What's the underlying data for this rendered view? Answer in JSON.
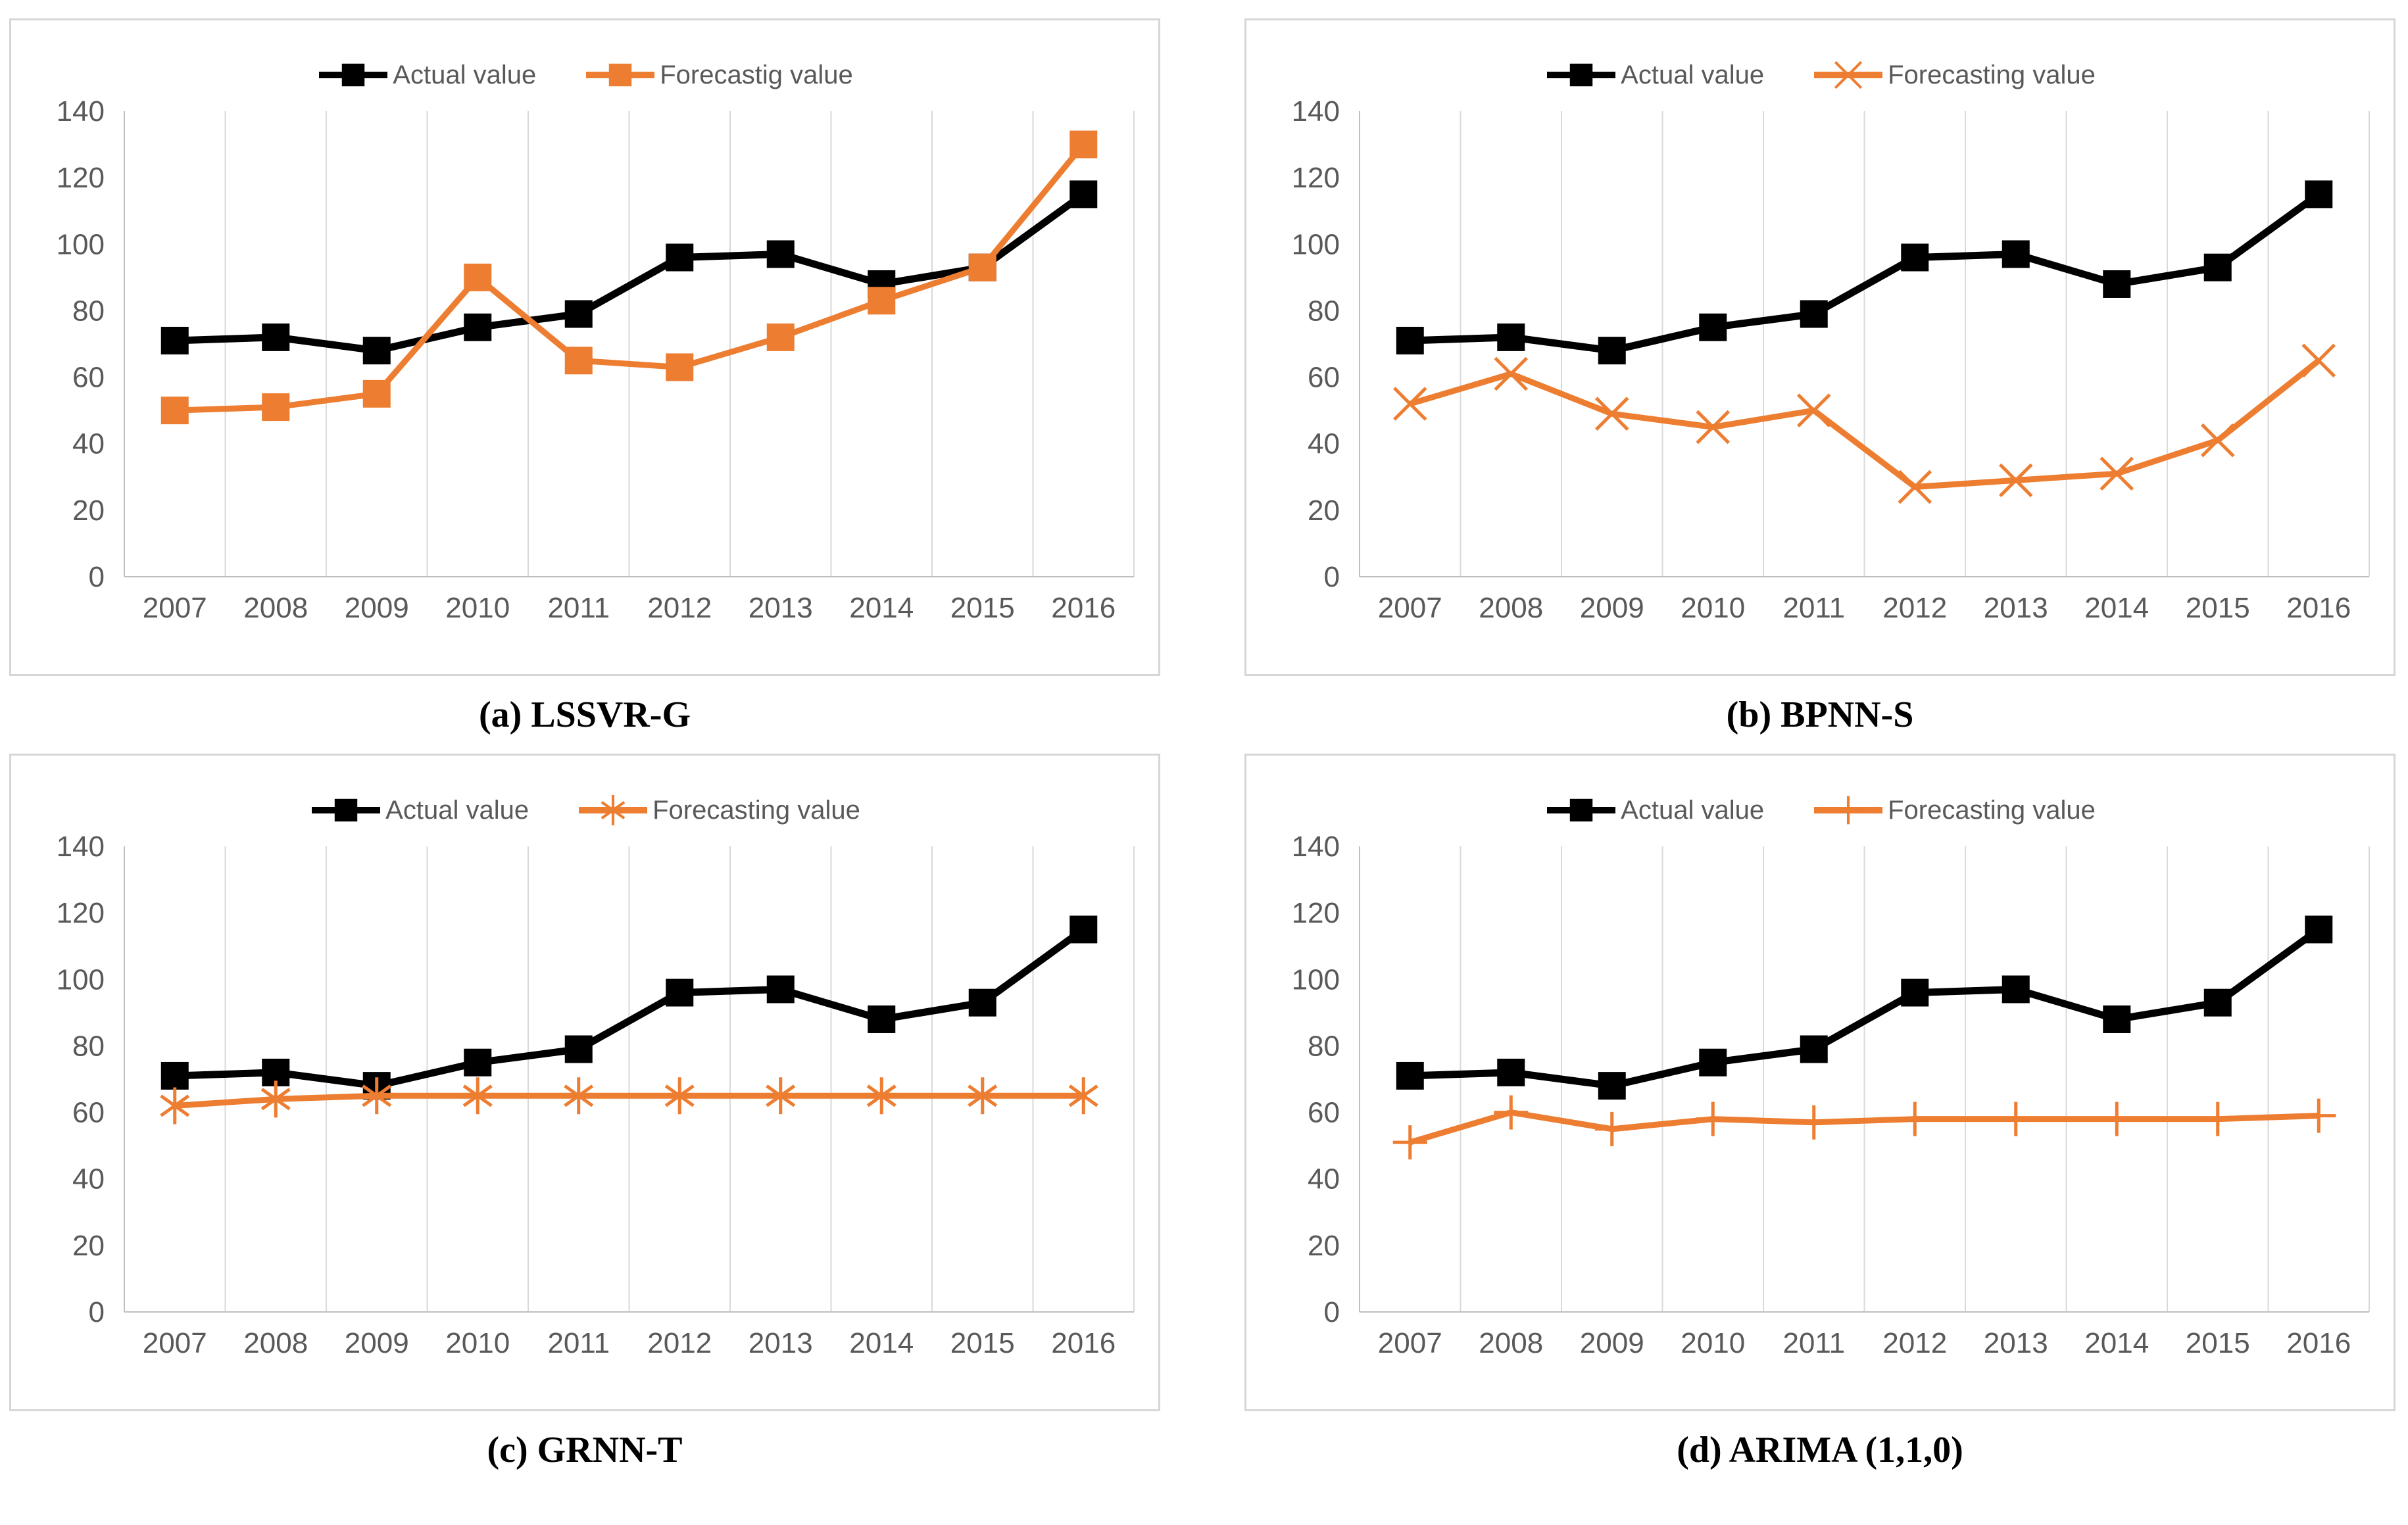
{
  "colors": {
    "actual": "#000000",
    "forecast": "#ED7D31",
    "gridline": "#D9D9D9",
    "axis_line": "#BFBFBF",
    "tick_text": "#595959",
    "legend_text": "#595959",
    "panel_border": "#D6D6D6",
    "caption_text": "#000000"
  },
  "chart_data": [
    {
      "id": "a",
      "type": "line",
      "title": "(a) LSSVR-G",
      "categories": [
        "2007",
        "2008",
        "2009",
        "2010",
        "2011",
        "2012",
        "2013",
        "2014",
        "2015",
        "2016"
      ],
      "ylim": [
        0,
        140
      ],
      "ytick_step": 20,
      "yticks": [
        140,
        120,
        100,
        80,
        60,
        40,
        20,
        0
      ],
      "grid": "vertical-only",
      "legend_position": "top-center",
      "series": [
        {
          "name": "Actual value",
          "marker": "square",
          "color": "#000000",
          "values": [
            71,
            72,
            68,
            75,
            79,
            96,
            97,
            88,
            93,
            115
          ]
        },
        {
          "name": "Forecastig value",
          "marker": "square",
          "color": "#ED7D31",
          "values": [
            50,
            51,
            55,
            90,
            65,
            63,
            72,
            83,
            93,
            130
          ]
        }
      ]
    },
    {
      "id": "b",
      "type": "line",
      "title": "(b) BPNN-S",
      "categories": [
        "2007",
        "2008",
        "2009",
        "2010",
        "2011",
        "2012",
        "2013",
        "2014",
        "2015",
        "2016"
      ],
      "ylim": [
        0,
        140
      ],
      "ytick_step": 20,
      "yticks": [
        140,
        120,
        100,
        80,
        60,
        40,
        20,
        0
      ],
      "grid": "vertical-only",
      "legend_position": "top-center",
      "series": [
        {
          "name": "Actual value",
          "marker": "square",
          "color": "#000000",
          "values": [
            71,
            72,
            68,
            75,
            79,
            96,
            97,
            88,
            93,
            115
          ]
        },
        {
          "name": "Forecasting value",
          "marker": "x",
          "color": "#ED7D31",
          "values": [
            52,
            61,
            49,
            45,
            50,
            27,
            29,
            31,
            41,
            65
          ]
        }
      ]
    },
    {
      "id": "c",
      "type": "line",
      "title": "(c) GRNN-T",
      "categories": [
        "2007",
        "2008",
        "2009",
        "2010",
        "2011",
        "2012",
        "2013",
        "2014",
        "2015",
        "2016"
      ],
      "ylim": [
        0,
        140
      ],
      "ytick_step": 20,
      "yticks": [
        140,
        120,
        100,
        80,
        60,
        40,
        20,
        0
      ],
      "grid": "vertical-only",
      "legend_position": "top-center",
      "series": [
        {
          "name": "Actual value",
          "marker": "square",
          "color": "#000000",
          "values": [
            71,
            72,
            68,
            75,
            79,
            96,
            97,
            88,
            93,
            115
          ]
        },
        {
          "name": "Forecasting value",
          "marker": "asterisk",
          "color": "#ED7D31",
          "values": [
            62,
            64,
            65,
            65,
            65,
            65,
            65,
            65,
            65,
            65
          ]
        }
      ]
    },
    {
      "id": "d",
      "type": "line",
      "title": "(d) ARIMA (1,1,0)",
      "categories": [
        "2007",
        "2008",
        "2009",
        "2010",
        "2011",
        "2012",
        "2013",
        "2014",
        "2015",
        "2016"
      ],
      "ylim": [
        0,
        140
      ],
      "ytick_step": 20,
      "yticks": [
        140,
        120,
        100,
        80,
        60,
        40,
        20,
        0
      ],
      "grid": "vertical-only",
      "legend_position": "top-center",
      "series": [
        {
          "name": "Actual value",
          "marker": "square",
          "color": "#000000",
          "values": [
            71,
            72,
            68,
            75,
            79,
            96,
            97,
            88,
            93,
            115
          ]
        },
        {
          "name": "Forecasting value",
          "marker": "plus",
          "color": "#ED7D31",
          "values": [
            51,
            60,
            55,
            58,
            57,
            58,
            58,
            58,
            58,
            59
          ]
        }
      ]
    }
  ]
}
